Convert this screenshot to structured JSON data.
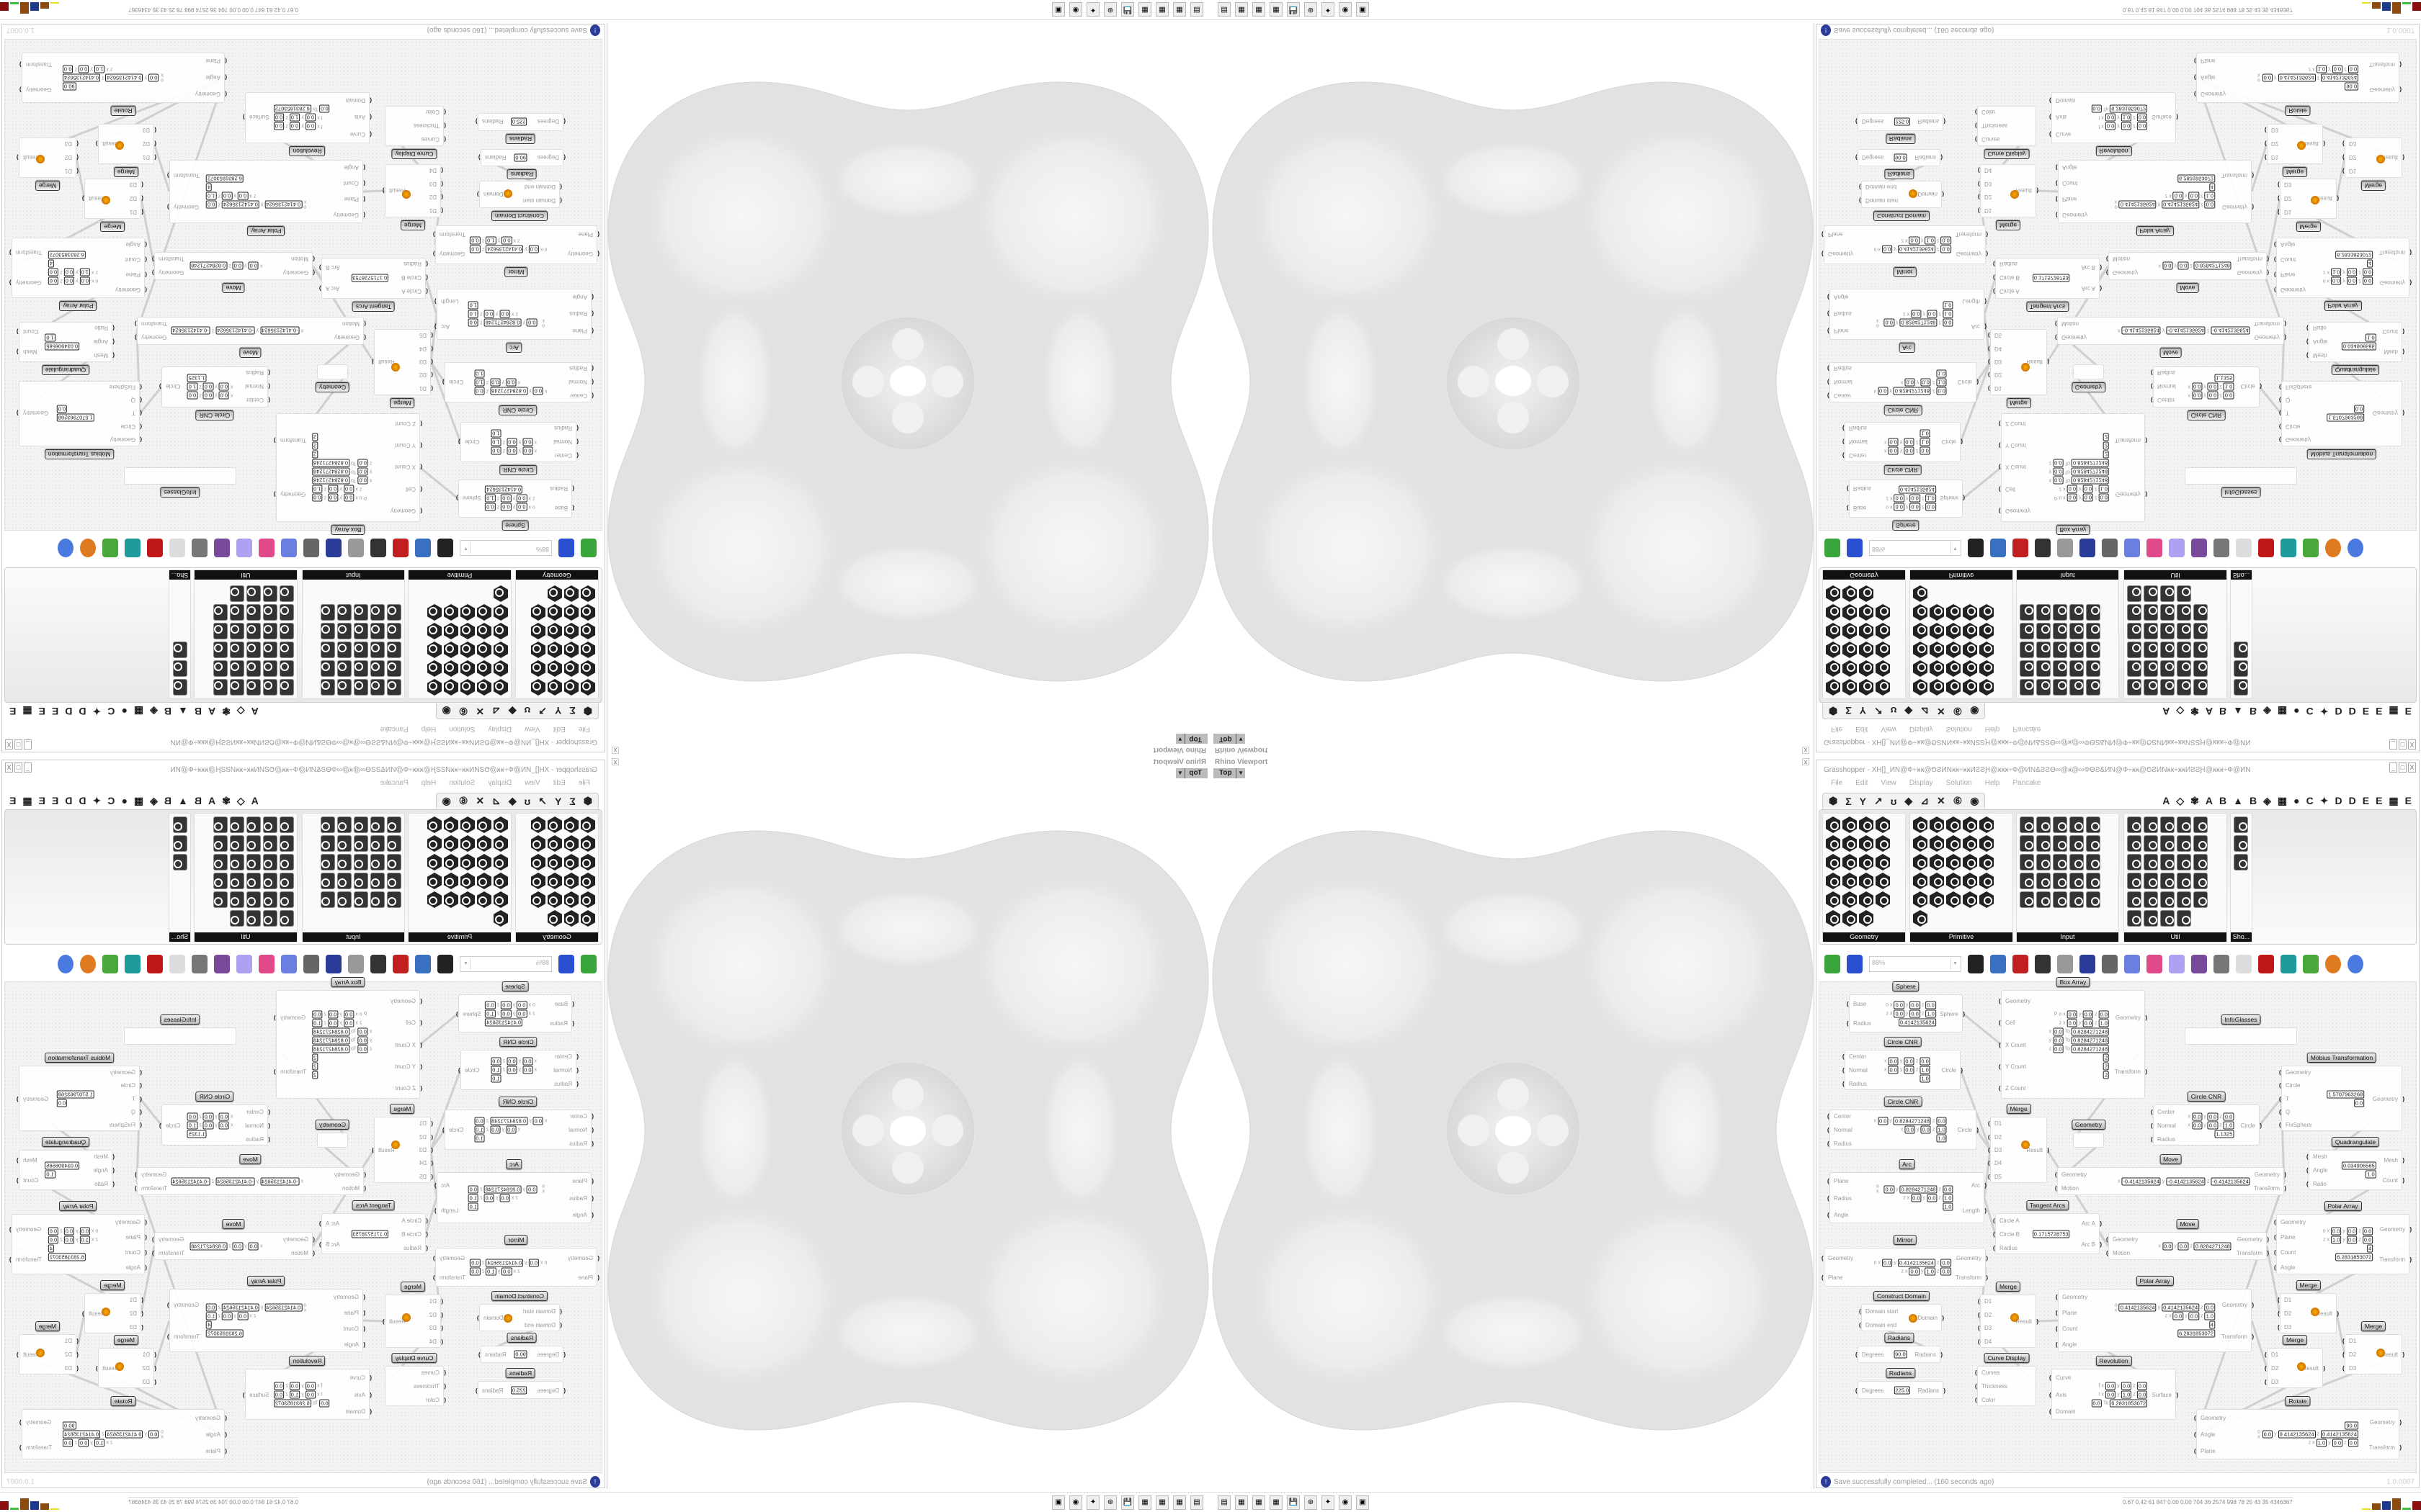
{
  "viewport": {
    "title": "Rhino Viewport",
    "view": "Top",
    "close": "x"
  },
  "gh": {
    "title": "Grasshopper - XH[]_ИN@Ф÷ӿӿ@ϬƧИNӿӿ÷ӿӿИƧƧԨ@ӿӿӿ÷Ф@ИN&ƧƧӨ∞@ӿ@∞ФƟƧ&ИN@Ф÷ӿӿ@ϬƧИNӿӿ÷ӿӿИƧƧԨ@ӿӿӿ÷Ф@ИN",
    "window_buttons": [
      "_",
      "□",
      "X"
    ],
    "menu": [
      "File",
      "Edit",
      "View",
      "Display",
      "Solution",
      "Help",
      "Pancake"
    ],
    "tabs_left": [
      "⬢",
      "Σ",
      "Y",
      "↗",
      "ʊ",
      "◆",
      "⊿",
      "✕",
      "⑥",
      "◉"
    ],
    "tabs_right": [
      "A",
      "◇",
      "✾",
      "A",
      "B",
      "▲",
      "B",
      "◈",
      "▦",
      "●",
      "C",
      "✦",
      "D",
      "D",
      "E",
      "E",
      "▦",
      "E"
    ],
    "panels": [
      "Geometry",
      "Primitive",
      "Input",
      "Util",
      "Sho..."
    ],
    "zoom": "88%",
    "toolbar_icons": [
      {
        "name": "new-file-icon",
        "color": "#3aa53a"
      },
      {
        "name": "save-icon",
        "color": "#2a4fd0"
      },
      {
        "name": "zoom-extents-icon",
        "color": "#222"
      },
      {
        "name": "preview-eye-icon",
        "color": "#3a70c0"
      },
      {
        "name": "sketch-pen-icon",
        "color": "#c02020"
      },
      {
        "name": "bug-icon",
        "color": "#333"
      },
      {
        "name": "at-sign-icon",
        "color": "#999"
      },
      {
        "name": "gha-icon",
        "color": "#2a3b9a"
      },
      {
        "name": "window-icon",
        "color": "#666"
      },
      {
        "name": "search-icon",
        "color": "#6a7fe0"
      },
      {
        "name": "box-help-icon",
        "color": "#e04a8a"
      },
      {
        "name": "bulb-icon",
        "color": "#b0a0f0"
      },
      {
        "name": "cross-wires-icon",
        "color": "#7a4a9a"
      },
      {
        "name": "preview-wire-icon",
        "color": "#777"
      },
      {
        "name": "preview-white-icon",
        "color": "#ddd"
      },
      {
        "name": "preview-shaded-icon",
        "color": "#c01818"
      },
      {
        "name": "teal-shape-icon",
        "color": "#1e9a9a"
      },
      {
        "name": "green-shape-icon",
        "color": "#4aa83a"
      },
      {
        "name": "orange-sphere-icon",
        "color": "#e07a20"
      },
      {
        "name": "blue-sphere-icon",
        "color": "#4a7ae0"
      }
    ],
    "status": "Save successfully completed... (160 seconds ago)",
    "version": "1.0.0007"
  },
  "canvas": {
    "nodes": [
      {
        "title": "Sphere",
        "inputs": [
          "Base",
          "Radius"
        ],
        "outputs": [
          "Sphere"
        ],
        "rows": [
          [
            "o x",
            "0.0",
            "y",
            "0.0",
            "z",
            "0.0"
          ],
          [
            "z x",
            "0.0",
            "y",
            "0.0",
            "z",
            "1.0"
          ],
          [
            "",
            "0.4142135624"
          ]
        ]
      },
      {
        "title": "Circle CNR",
        "inputs": [
          "Center",
          "Normal",
          "Radius"
        ],
        "outputs": [
          "Circle"
        ],
        "rows": [
          [
            "x",
            "0.0",
            "y",
            "0.0",
            "z",
            "0.0"
          ],
          [
            "x",
            "0.0",
            "y",
            "0.0",
            "z",
            "1.0"
          ],
          [
            "",
            "1.0"
          ]
        ]
      },
      {
        "title": "Circle CNR",
        "inputs": [
          "Center",
          "Normal",
          "Radius"
        ],
        "outputs": [
          "Circle"
        ],
        "rows": [
          [
            "x",
            "0.0",
            "y",
            "0.8284271248",
            "z",
            "0.0"
          ],
          [
            "x",
            "0.0",
            "y",
            "0.0",
            "z",
            "1.0"
          ],
          [
            "",
            "1.0"
          ]
        ]
      },
      {
        "title": "Arc",
        "inputs": [
          "Plane",
          "Radius",
          "Angle"
        ],
        "outputs": [
          "Arc",
          "Length"
        ],
        "rows": [
          [
            "o x",
            "0.0",
            "y",
            "0.8284271248",
            "z",
            "0.0"
          ],
          [
            "z x",
            "0.0",
            "y",
            "0.0",
            "z",
            "1.0"
          ],
          [
            "",
            "1.0"
          ]
        ]
      },
      {
        "title": "Mirror",
        "inputs": [
          "Geometry",
          "Plane"
        ],
        "outputs": [
          "Geometry",
          "Transform"
        ],
        "rows": [
          [
            "o x",
            "0.0",
            "y",
            "0.4142135624",
            "z",
            "0.0"
          ],
          [
            "z x",
            "0.0",
            "y",
            "1.0",
            "z",
            "0.0"
          ]
        ]
      },
      {
        "title": "Construct Domain",
        "inputs": [
          "Domain start",
          "Domain end"
        ],
        "outputs": [
          "Domain"
        ],
        "rows": []
      },
      {
        "title": "Radians",
        "inputs": [
          "Degrees"
        ],
        "outputs": [
          "Radians"
        ],
        "rows": [
          [
            "",
            "90.0"
          ]
        ]
      },
      {
        "title": "Radians",
        "inputs": [
          "Degrees"
        ],
        "outputs": [
          "Radians"
        ],
        "rows": [
          [
            "",
            "225.0"
          ]
        ]
      },
      {
        "title": "Box Array",
        "inputs": [
          "Geometry",
          "Cell",
          "X Count",
          "Y Count",
          "Z Count"
        ],
        "outputs": [
          "Geometry",
          "Transform"
        ],
        "rows": [
          [
            "P o x",
            "0.0",
            "y",
            "0.0",
            "z",
            "0.0"
          ],
          [
            "z x",
            "0.0",
            "y",
            "0.0",
            "z",
            "1.0"
          ],
          [
            "x",
            "0.0",
            "To",
            "0.8284271248"
          ],
          [
            "y",
            "0.0",
            "To",
            "0.8284271248"
          ],
          [
            "z",
            "0.0",
            "To",
            "0.8284271248"
          ],
          [
            "",
            "2"
          ],
          [
            "",
            "2"
          ],
          [
            "",
            "2"
          ]
        ]
      },
      {
        "title": "Merge",
        "inputs": [
          "D1",
          "D2",
          "D3",
          "D4",
          "D5"
        ],
        "outputs": [
          "Result"
        ],
        "rows": []
      },
      {
        "title": "Tangent Arcs",
        "inputs": [
          "Circle A",
          "Circle B",
          "Radius"
        ],
        "outputs": [
          "Arc A",
          "Arc B"
        ],
        "rows": [
          [
            "",
            "0.1715728753"
          ]
        ]
      },
      {
        "title": "Merge",
        "inputs": [
          "D1",
          "D2",
          "D3",
          "D4"
        ],
        "outputs": [
          "Result"
        ],
        "rows": []
      },
      {
        "title": "Curve Display",
        "inputs": [
          "Curves",
          "Thickness",
          "Color"
        ],
        "outputs": [],
        "rows": []
      },
      {
        "title": "Geometry",
        "inputs": [],
        "outputs": [],
        "rows": []
      },
      {
        "title": "Move",
        "inputs": [
          "Geometry",
          "Motion"
        ],
        "outputs": [
          "Geometry",
          "Transform"
        ],
        "rows": [
          [
            "x",
            "-0.4142135624",
            "y",
            "-0.4142135624",
            "z",
            "-0.4142135624"
          ]
        ]
      },
      {
        "title": "Move",
        "inputs": [
          "Geometry",
          "Motion"
        ],
        "outputs": [
          "Geometry",
          "Transform"
        ],
        "rows": [
          [
            "x",
            "0.0",
            "y",
            "0.0",
            "z",
            "0.8284271248"
          ]
        ]
      },
      {
        "title": "Polar Array",
        "inputs": [
          "Geometry",
          "Plane",
          "Count",
          "Angle"
        ],
        "outputs": [
          "Geometry",
          "Transform"
        ],
        "rows": [
          [
            "o x",
            "0.4142135624",
            "y",
            "0.4142135624",
            "z",
            "0.0"
          ],
          [
            "z x",
            "0.0",
            "y",
            "0.0",
            "z",
            "1.0"
          ],
          [
            "",
            "4"
          ],
          [
            "",
            "6.2831853072"
          ]
        ]
      },
      {
        "title": "Revolution",
        "inputs": [
          "Curve",
          "Axis",
          "Domain"
        ],
        "outputs": [
          "Surface"
        ],
        "rows": [
          [
            "f x",
            "0.0",
            "y",
            "0.0",
            "z",
            "0.0"
          ],
          [
            "t x",
            "0.0",
            "y",
            "1.0",
            "z",
            "0.0"
          ],
          [
            "",
            "0.0",
            "To",
            "6.2831853072"
          ]
        ]
      },
      {
        "title": "InfoGlasses",
        "inputs": [],
        "outputs": [],
        "rows": []
      },
      {
        "title": "Circle CNR",
        "inputs": [
          "Center",
          "Normal",
          "Radius"
        ],
        "outputs": [
          "Circle"
        ],
        "rows": [
          [
            "x",
            "0.0",
            "y",
            "0.0",
            "z",
            "0.0"
          ],
          [
            "x",
            "0.0",
            "y",
            "0.0",
            "z",
            "1.0"
          ],
          [
            "",
            "1.1325"
          ]
        ]
      },
      {
        "title": "Möbius Transformation",
        "inputs": [
          "Geometry",
          "Circle",
          "T",
          "Q",
          "FixSphere"
        ],
        "outputs": [
          "Geometry"
        ],
        "rows": [
          [
            "",
            "1.5707963268"
          ],
          [
            "",
            "0.0"
          ]
        ]
      },
      {
        "title": "Quadrangulate",
        "inputs": [
          "Mesh",
          "Angle",
          "Ratio"
        ],
        "outputs": [
          "Mesh",
          "Count"
        ],
        "rows": [
          [
            "",
            "0.034906585"
          ],
          [
            "",
            "1.0"
          ]
        ]
      },
      {
        "title": "Polar Array",
        "inputs": [
          "Geometry",
          "Plane",
          "Count",
          "Angle"
        ],
        "outputs": [
          "Geometry",
          "Transform"
        ],
        "rows": [
          [
            "o x",
            "0.0",
            "y",
            "0.0",
            "z",
            "0.0"
          ],
          [
            "z x",
            "1.0",
            "y",
            "0.0",
            "z",
            "0.0"
          ],
          [
            "",
            "4"
          ],
          [
            "",
            "6.2831853072"
          ]
        ]
      },
      {
        "title": "Merge",
        "inputs": [
          "D1",
          "D2",
          "D3"
        ],
        "outputs": [
          "Result"
        ],
        "rows": []
      },
      {
        "title": "Merge",
        "inputs": [
          "D1",
          "D2",
          "D3"
        ],
        "outputs": [
          "Result"
        ],
        "rows": []
      },
      {
        "title": "Merge",
        "inputs": [
          "D1",
          "D2",
          "D3"
        ],
        "outputs": [
          "Result"
        ],
        "rows": []
      },
      {
        "title": "Rotate",
        "inputs": [
          "Geometry",
          "Angle",
          "Plane"
        ],
        "outputs": [
          "Geometry",
          "Transform"
        ],
        "rows": [
          [
            "",
            "90.0"
          ],
          [
            "o x",
            "0.0",
            "y",
            "0.4142135624",
            "z",
            "0.4142135624"
          ],
          [
            "z x",
            "1.0",
            "y",
            "0.0",
            "z",
            "0.0"
          ]
        ]
      }
    ]
  },
  "taskbar": {
    "apps": [
      "▤",
      "▦",
      "▦",
      "▦",
      "💾",
      "⊛",
      "✦",
      "◉",
      "▣"
    ],
    "stats": "0.67 0.42 61 847 0.00 0.00 704 36 2574 998 78 25 43 35 4346367",
    "bar_colors": [
      "#e8e020",
      "#8a4a10",
      "#1e3a8a",
      "#8a4a10",
      "#40c040",
      "#8a1010"
    ]
  }
}
